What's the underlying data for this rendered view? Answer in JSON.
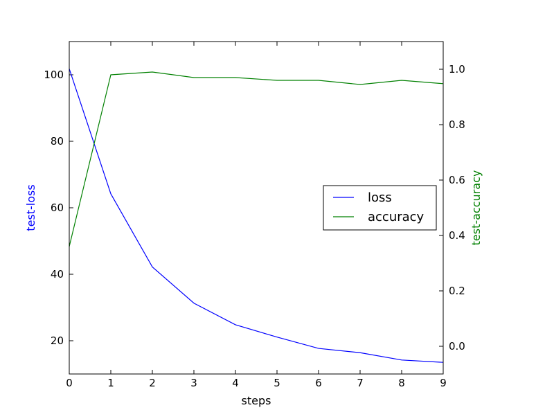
{
  "chart_data": {
    "type": "line",
    "title": "",
    "xlabel": "steps",
    "ylabel_left": "test-loss",
    "ylabel_right": "test-accuracy",
    "x": [
      0,
      1,
      2,
      3,
      4,
      5,
      6,
      7,
      8,
      9
    ],
    "xlim": [
      0,
      9
    ],
    "ylim_left": [
      10,
      110
    ],
    "ylim_right": [
      -0.1,
      1.1
    ],
    "x_ticks": [
      "0",
      "1",
      "2",
      "3",
      "4",
      "5",
      "6",
      "7",
      "8",
      "9"
    ],
    "y_left_ticks": [
      "20",
      "40",
      "60",
      "80",
      "100"
    ],
    "y_right_ticks": [
      "0.0",
      "0.2",
      "0.4",
      "0.6",
      "0.8",
      "1.0"
    ],
    "grid": false,
    "legend_position": "center-right",
    "series": [
      {
        "name": "loss",
        "axis": "left",
        "color": "#0000ff",
        "values": [
          101.8,
          64.2,
          42.2,
          31.3,
          24.8,
          21.1,
          17.7,
          16.4,
          14.2,
          13.5
        ]
      },
      {
        "name": "accuracy",
        "axis": "right",
        "color": "#008000",
        "values": [
          0.36,
          0.98,
          0.99,
          0.97,
          0.97,
          0.96,
          0.96,
          0.945,
          0.96,
          0.948
        ]
      }
    ]
  }
}
